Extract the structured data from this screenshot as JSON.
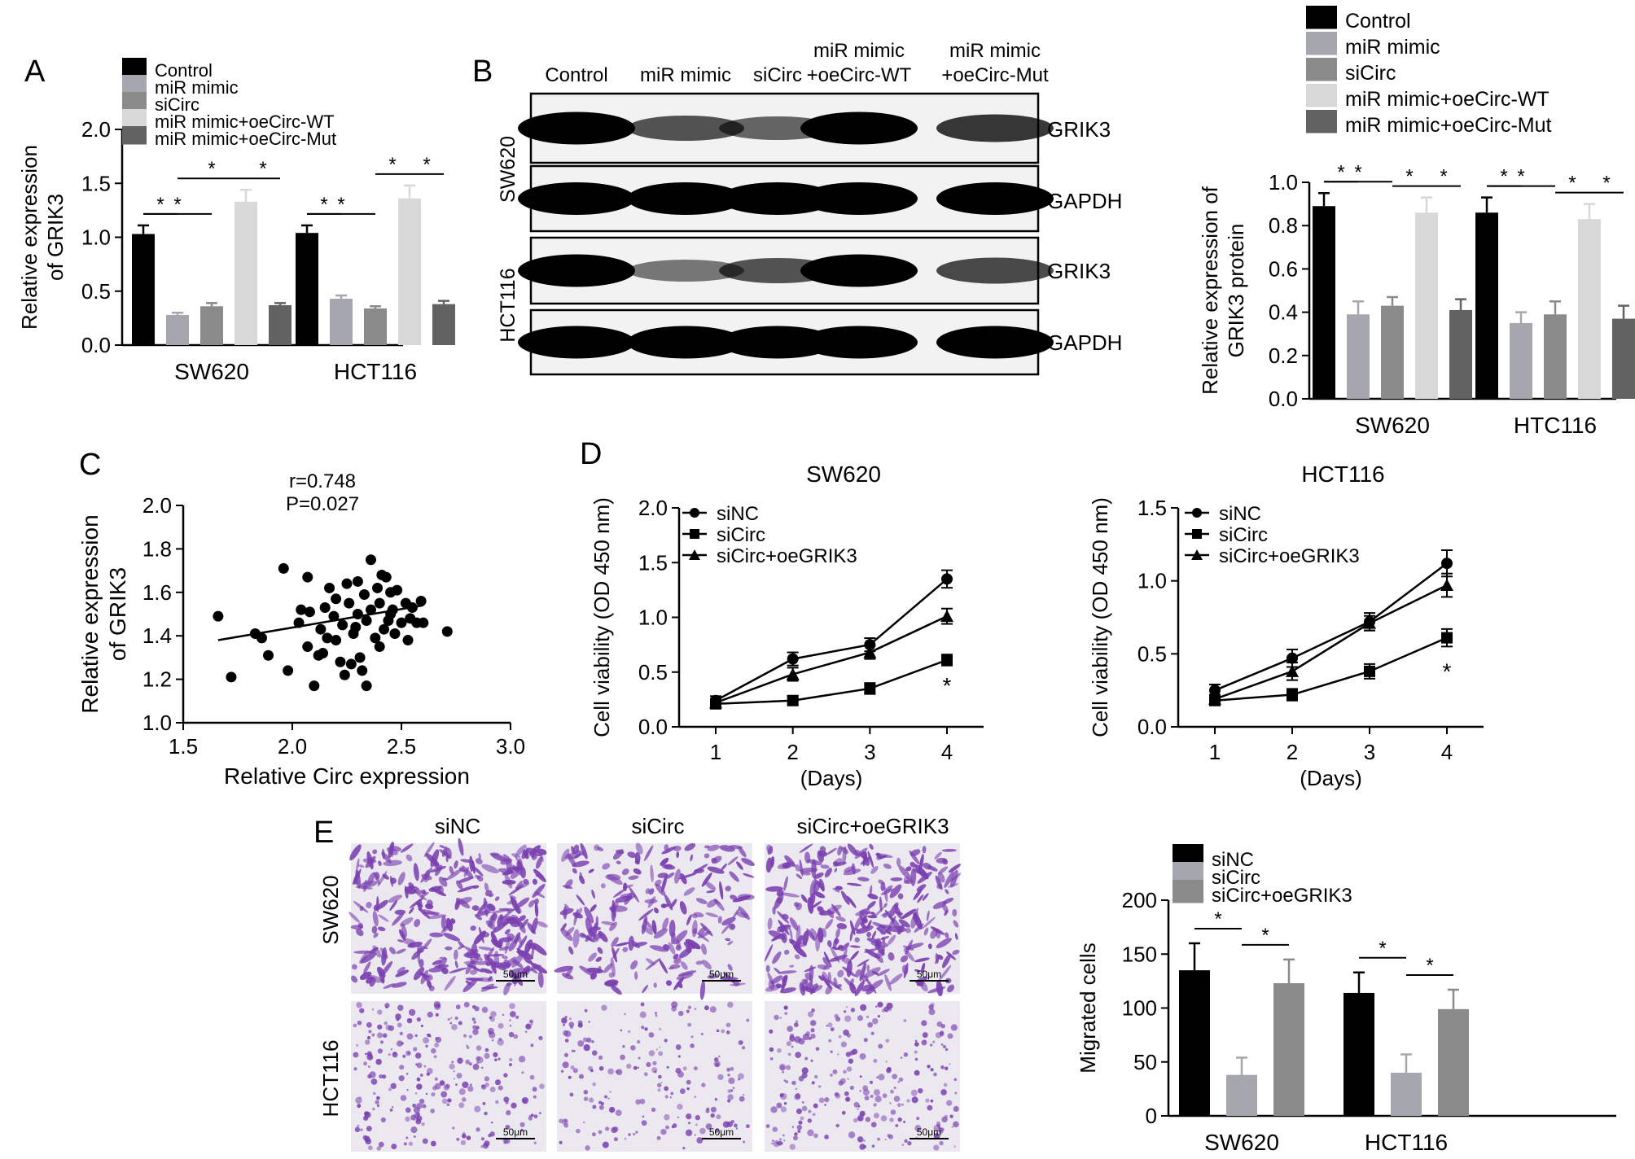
{
  "panel_labels": [
    "A",
    "B",
    "C",
    "D",
    "E"
  ],
  "colors": {
    "control": "#000000",
    "mimic": "#a6a6ae",
    "siCirc": "#8a8a8a",
    "wt": "#d8d8d8",
    "mut": "#626262",
    "siNC": "#000000",
    "siCirc_e": "#a6a6ae",
    "oe": "#8a8a8a",
    "stain": "#7a3fb0"
  },
  "chart_data": [
    {
      "id": "A",
      "type": "bar",
      "ylabel": [
        "Relative expression",
        "of GRIK3"
      ],
      "ylim": [
        0,
        2.0
      ],
      "yticks": [
        "0.0",
        "0.5",
        "1.0",
        "1.5",
        "2.0"
      ],
      "categories": [
        "SW620",
        "HCT116"
      ],
      "legend_position": "top",
      "series": [
        {
          "name": "Control",
          "values": [
            1.03,
            1.04
          ],
          "errors": [
            0.08,
            0.07
          ]
        },
        {
          "name": "miR mimic",
          "values": [
            0.28,
            0.43
          ],
          "errors": [
            0.02,
            0.03
          ]
        },
        {
          "name": "siCirc",
          "values": [
            0.36,
            0.34
          ],
          "errors": [
            0.03,
            0.02
          ]
        },
        {
          "name": "miR mimic+oeCirc-WT",
          "values": [
            1.33,
            1.36
          ],
          "errors": [
            0.11,
            0.12
          ]
        },
        {
          "name": "miR mimic+oeCirc-Mut",
          "values": [
            0.37,
            0.38
          ],
          "errors": [
            0.02,
            0.03
          ]
        }
      ],
      "significance": [
        {
          "group": 0,
          "from": 0,
          "to": 1,
          "label": "*"
        },
        {
          "group": 0,
          "from": 0,
          "to": 2,
          "label": "*"
        },
        {
          "group": 0,
          "from": 1,
          "to": 3,
          "label": "*"
        },
        {
          "group": 0,
          "from": 3,
          "to": 4,
          "label": "*"
        },
        {
          "group": 1,
          "from": 0,
          "to": 1,
          "label": "*"
        },
        {
          "group": 1,
          "from": 0,
          "to": 2,
          "label": "*"
        },
        {
          "group": 1,
          "from": 2,
          "to": 3,
          "label": "*"
        },
        {
          "group": 1,
          "from": 3,
          "to": 4,
          "label": "*"
        }
      ]
    },
    {
      "id": "B",
      "type": "bar",
      "ylabel": [
        "Relative expression of",
        "GRIK3 protein"
      ],
      "ylim": [
        0,
        1.0
      ],
      "yticks": [
        "0.0",
        "0.2",
        "0.4",
        "0.6",
        "0.8",
        "1.0"
      ],
      "categories": [
        "SW620",
        "HTC116"
      ],
      "legend_position": "top",
      "series": [
        {
          "name": "Control",
          "values": [
            0.89,
            0.86
          ],
          "errors": [
            0.06,
            0.07
          ]
        },
        {
          "name": "miR mimic",
          "values": [
            0.39,
            0.35
          ],
          "errors": [
            0.06,
            0.05
          ]
        },
        {
          "name": "siCirc",
          "values": [
            0.43,
            0.39
          ],
          "errors": [
            0.04,
            0.06
          ]
        },
        {
          "name": "miR mimic+oeCirc-WT",
          "values": [
            0.86,
            0.83
          ],
          "errors": [
            0.07,
            0.07
          ]
        },
        {
          "name": "miR mimic+oeCirc-Mut",
          "values": [
            0.41,
            0.37
          ],
          "errors": [
            0.05,
            0.06
          ]
        }
      ],
      "significance": [
        {
          "group": 0,
          "from": 0,
          "to": 1,
          "label": "*"
        },
        {
          "group": 0,
          "from": 0,
          "to": 2,
          "label": "*"
        },
        {
          "group": 0,
          "from": 2,
          "to": 3,
          "label": "*"
        },
        {
          "group": 0,
          "from": 3,
          "to": 4,
          "label": "*"
        },
        {
          "group": 1,
          "from": 0,
          "to": 1,
          "label": "*"
        },
        {
          "group": 1,
          "from": 0,
          "to": 2,
          "label": "*"
        },
        {
          "group": 1,
          "from": 2,
          "to": 3,
          "label": "*"
        },
        {
          "group": 1,
          "from": 3,
          "to": 4,
          "label": "*"
        }
      ]
    },
    {
      "id": "C",
      "type": "scatter",
      "annotation": [
        "r=0.748",
        "P=0.027"
      ],
      "xlabel": "Relative Circ expression",
      "ylabel": [
        "Relative expression",
        "of GRIK3"
      ],
      "xlim": [
        1.5,
        3.0
      ],
      "ylim": [
        1.0,
        2.0
      ],
      "xticks": [
        "1.5",
        "2.0",
        "2.5",
        "3.0"
      ],
      "yticks": [
        "1.0",
        "1.2",
        "1.4",
        "1.6",
        "1.8",
        "2.0"
      ],
      "trendline": [
        [
          1.66,
          1.38
        ],
        [
          2.6,
          1.54
        ]
      ],
      "points": [
        [
          1.66,
          1.49
        ],
        [
          1.72,
          1.21
        ],
        [
          1.83,
          1.41
        ],
        [
          1.86,
          1.39
        ],
        [
          1.89,
          1.31
        ],
        [
          1.96,
          1.71
        ],
        [
          1.98,
          1.24
        ],
        [
          2.03,
          1.46
        ],
        [
          2.04,
          1.52
        ],
        [
          2.07,
          1.35
        ],
        [
          2.07,
          1.67
        ],
        [
          2.08,
          1.51
        ],
        [
          2.1,
          1.17
        ],
        [
          2.12,
          1.31
        ],
        [
          2.13,
          1.43
        ],
        [
          2.14,
          1.32
        ],
        [
          2.15,
          1.53
        ],
        [
          2.17,
          1.62
        ],
        [
          2.19,
          1.49
        ],
        [
          2.2,
          1.38
        ],
        [
          2.2,
          1.57
        ],
        [
          2.22,
          1.28
        ],
        [
          2.23,
          1.45
        ],
        [
          2.24,
          1.22
        ],
        [
          2.25,
          1.64
        ],
        [
          2.26,
          1.55
        ],
        [
          2.27,
          1.27
        ],
        [
          2.28,
          1.41
        ],
        [
          2.29,
          1.44
        ],
        [
          2.3,
          1.5
        ],
        [
          2.31,
          1.3
        ],
        [
          2.32,
          1.24
        ],
        [
          2.33,
          1.59
        ],
        [
          2.34,
          1.17
        ],
        [
          2.34,
          1.47
        ],
        [
          2.36,
          1.75
        ],
        [
          2.36,
          1.52
        ],
        [
          2.38,
          1.39
        ],
        [
          2.39,
          1.62
        ],
        [
          2.4,
          1.55
        ],
        [
          2.4,
          1.35
        ],
        [
          2.41,
          1.68
        ],
        [
          2.42,
          1.43
        ],
        [
          2.43,
          1.67
        ],
        [
          2.44,
          1.47
        ],
        [
          2.45,
          1.6
        ],
        [
          2.46,
          1.52
        ],
        [
          2.47,
          1.41
        ],
        [
          2.48,
          1.61
        ],
        [
          2.5,
          1.46
        ],
        [
          2.52,
          1.55
        ],
        [
          2.53,
          1.38
        ],
        [
          2.54,
          1.48
        ],
        [
          2.55,
          1.53
        ],
        [
          2.57,
          1.46
        ],
        [
          2.59,
          1.56
        ],
        [
          2.6,
          1.46
        ],
        [
          2.71,
          1.42
        ],
        [
          2.3,
          1.65
        ],
        [
          2.16,
          1.39
        ],
        [
          2.45,
          1.5
        ]
      ]
    },
    {
      "id": "D1",
      "type": "line",
      "title": "SW620",
      "xlabel": "(Days)",
      "ylabel": "Cell viability (OD 450 nm)",
      "x": [
        1,
        2,
        3,
        4
      ],
      "xticks": [
        "1",
        "2",
        "3",
        "4"
      ],
      "ylim": [
        0,
        2.0
      ],
      "yticks": [
        "0.0",
        "0.5",
        "1.0",
        "1.5",
        "2.0"
      ],
      "legend_position": "top-left",
      "series": [
        {
          "name": "siNC",
          "marker": "circle",
          "values": [
            0.24,
            0.62,
            0.75,
            1.35
          ],
          "errors": [
            0.04,
            0.06,
            0.06,
            0.08
          ]
        },
        {
          "name": "siCirc",
          "marker": "square",
          "values": [
            0.21,
            0.24,
            0.35,
            0.61
          ],
          "errors": [
            0.03,
            0.04,
            0.05,
            0.05
          ]
        },
        {
          "name": "siCirc+oeGRIK3",
          "marker": "triangle",
          "values": [
            0.22,
            0.48,
            0.68,
            1.01
          ],
          "errors": [
            0.03,
            0.06,
            0.06,
            0.07
          ]
        }
      ],
      "annotation": {
        "x": 4,
        "y": 0.47,
        "label": "*"
      }
    },
    {
      "id": "D2",
      "type": "line",
      "title": "HCT116",
      "xlabel": "(Days)",
      "ylabel": "Cell viability (OD 450 nm)",
      "x": [
        1,
        2,
        3,
        4
      ],
      "xticks": [
        "1",
        "2",
        "3",
        "4"
      ],
      "ylim": [
        0,
        1.5
      ],
      "yticks": [
        "0.0",
        "0.5",
        "1.0",
        "1.5"
      ],
      "legend_position": "top-left",
      "series": [
        {
          "name": "siNC",
          "marker": "circle",
          "values": [
            0.25,
            0.47,
            0.72,
            1.12
          ],
          "errors": [
            0.04,
            0.06,
            0.06,
            0.09
          ]
        },
        {
          "name": "siCirc",
          "marker": "square",
          "values": [
            0.18,
            0.22,
            0.38,
            0.61
          ],
          "errors": [
            0.03,
            0.04,
            0.05,
            0.06
          ]
        },
        {
          "name": "siCirc+oeGRIK3",
          "marker": "triangle",
          "values": [
            0.19,
            0.38,
            0.71,
            0.97
          ],
          "errors": [
            0.03,
            0.06,
            0.05,
            0.08
          ]
        }
      ],
      "annotation": {
        "x": 4,
        "y": 0.45,
        "label": "*"
      }
    },
    {
      "id": "E",
      "type": "bar",
      "ylabel": "Migrated cells",
      "ylim": [
        0,
        200
      ],
      "yticks": [
        "0",
        "50",
        "100",
        "150",
        "200"
      ],
      "categories": [
        "SW620",
        "HCT116"
      ],
      "legend_position": "top",
      "series": [
        {
          "name": "siNC",
          "values": [
            135,
            114
          ],
          "errors": [
            25,
            19
          ]
        },
        {
          "name": "siCirc",
          "values": [
            38,
            40
          ],
          "errors": [
            16,
            17
          ]
        },
        {
          "name": "siCirc+oeGRIK3",
          "values": [
            123,
            99
          ],
          "errors": [
            22,
            18
          ]
        }
      ],
      "significance": [
        {
          "group": 0,
          "from": 0,
          "to": 1,
          "label": "*"
        },
        {
          "group": 0,
          "from": 1,
          "to": 2,
          "label": "*"
        },
        {
          "group": 1,
          "from": 0,
          "to": 1,
          "label": "*"
        },
        {
          "group": 1,
          "from": 1,
          "to": 2,
          "label": "*"
        }
      ]
    }
  ],
  "blot": {
    "columns": [
      "Control",
      "miR mimic",
      "siCirc",
      "miR mimic\n+oeCirc-WT",
      "miR mimic\n+oeCirc-Mut"
    ],
    "cell_lines": [
      "SW620",
      "HCT116"
    ],
    "bands": [
      "GRIK3",
      "GAPDH",
      "GRIK3",
      "GAPDH"
    ]
  },
  "micrographs": {
    "columns": [
      "siNC",
      "siCirc",
      "siCirc+oeGRIK3"
    ],
    "rows": [
      "SW620",
      "HCT116"
    ],
    "scale_bar": "50μm",
    "density": [
      [
        0.95,
        0.5,
        0.9
      ],
      [
        0.7,
        0.4,
        0.65
      ]
    ]
  }
}
